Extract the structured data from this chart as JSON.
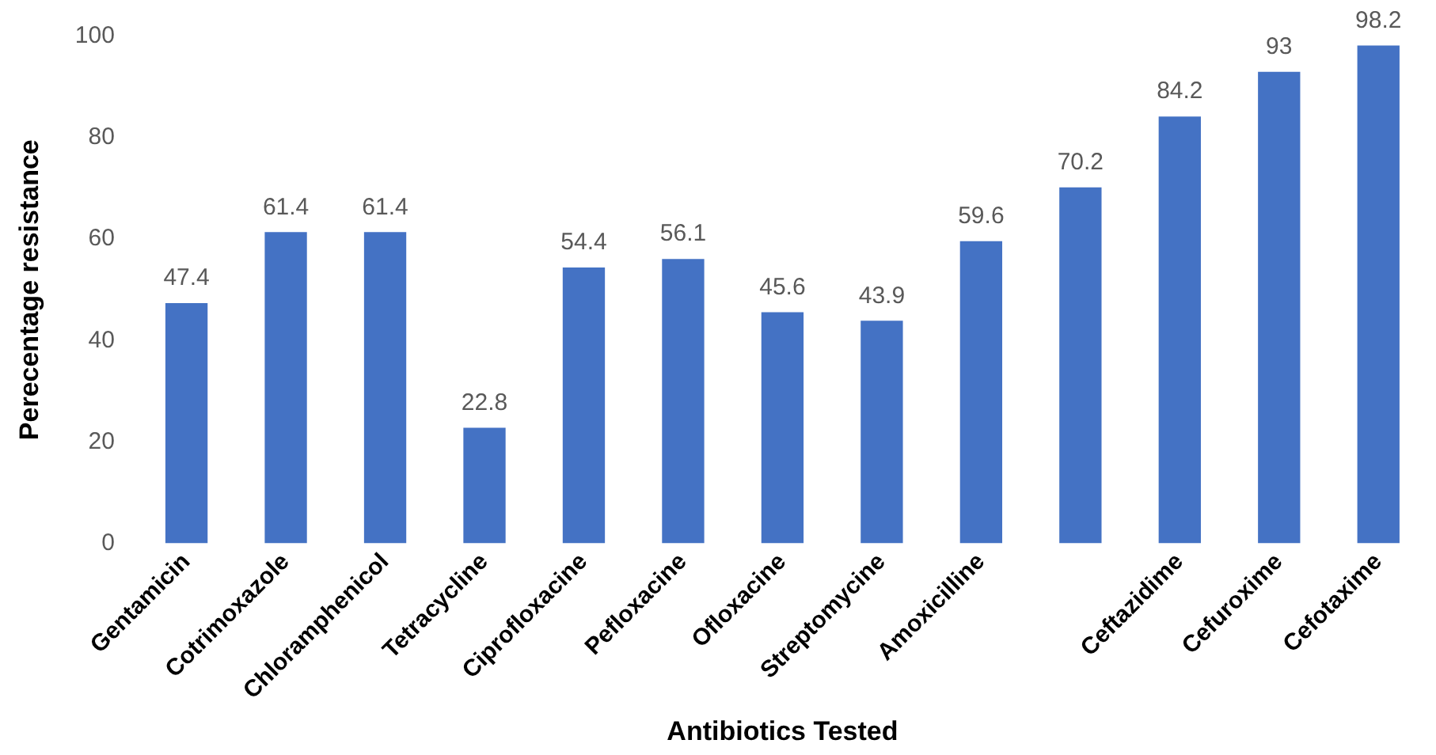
{
  "chart_data": {
    "type": "bar",
    "xlabel": "Antibiotics Tested",
    "ylabel": "Perecentage resistance",
    "categories": [
      "Gentamicin",
      "Cotrimoxazole",
      "Chloramphenicol",
      "Tetracycline",
      "Ciprofloxacine",
      "Pefloxacine",
      "Ofloxacine",
      "Streptomycine",
      "Amoxicilline",
      null,
      "Ceftazidime",
      "Cefuroxime",
      "Cefotaxime"
    ],
    "values": [
      47.4,
      61.4,
      61.4,
      22.8,
      54.4,
      56.1,
      45.6,
      43.9,
      59.6,
      70.2,
      84.2,
      93,
      98.2
    ],
    "color": "#4472c4",
    "ylim": [
      0,
      100
    ],
    "yticks": [
      0,
      20,
      40,
      60,
      80,
      100
    ],
    "grid": false,
    "legend": false,
    "data_labels": true
  }
}
